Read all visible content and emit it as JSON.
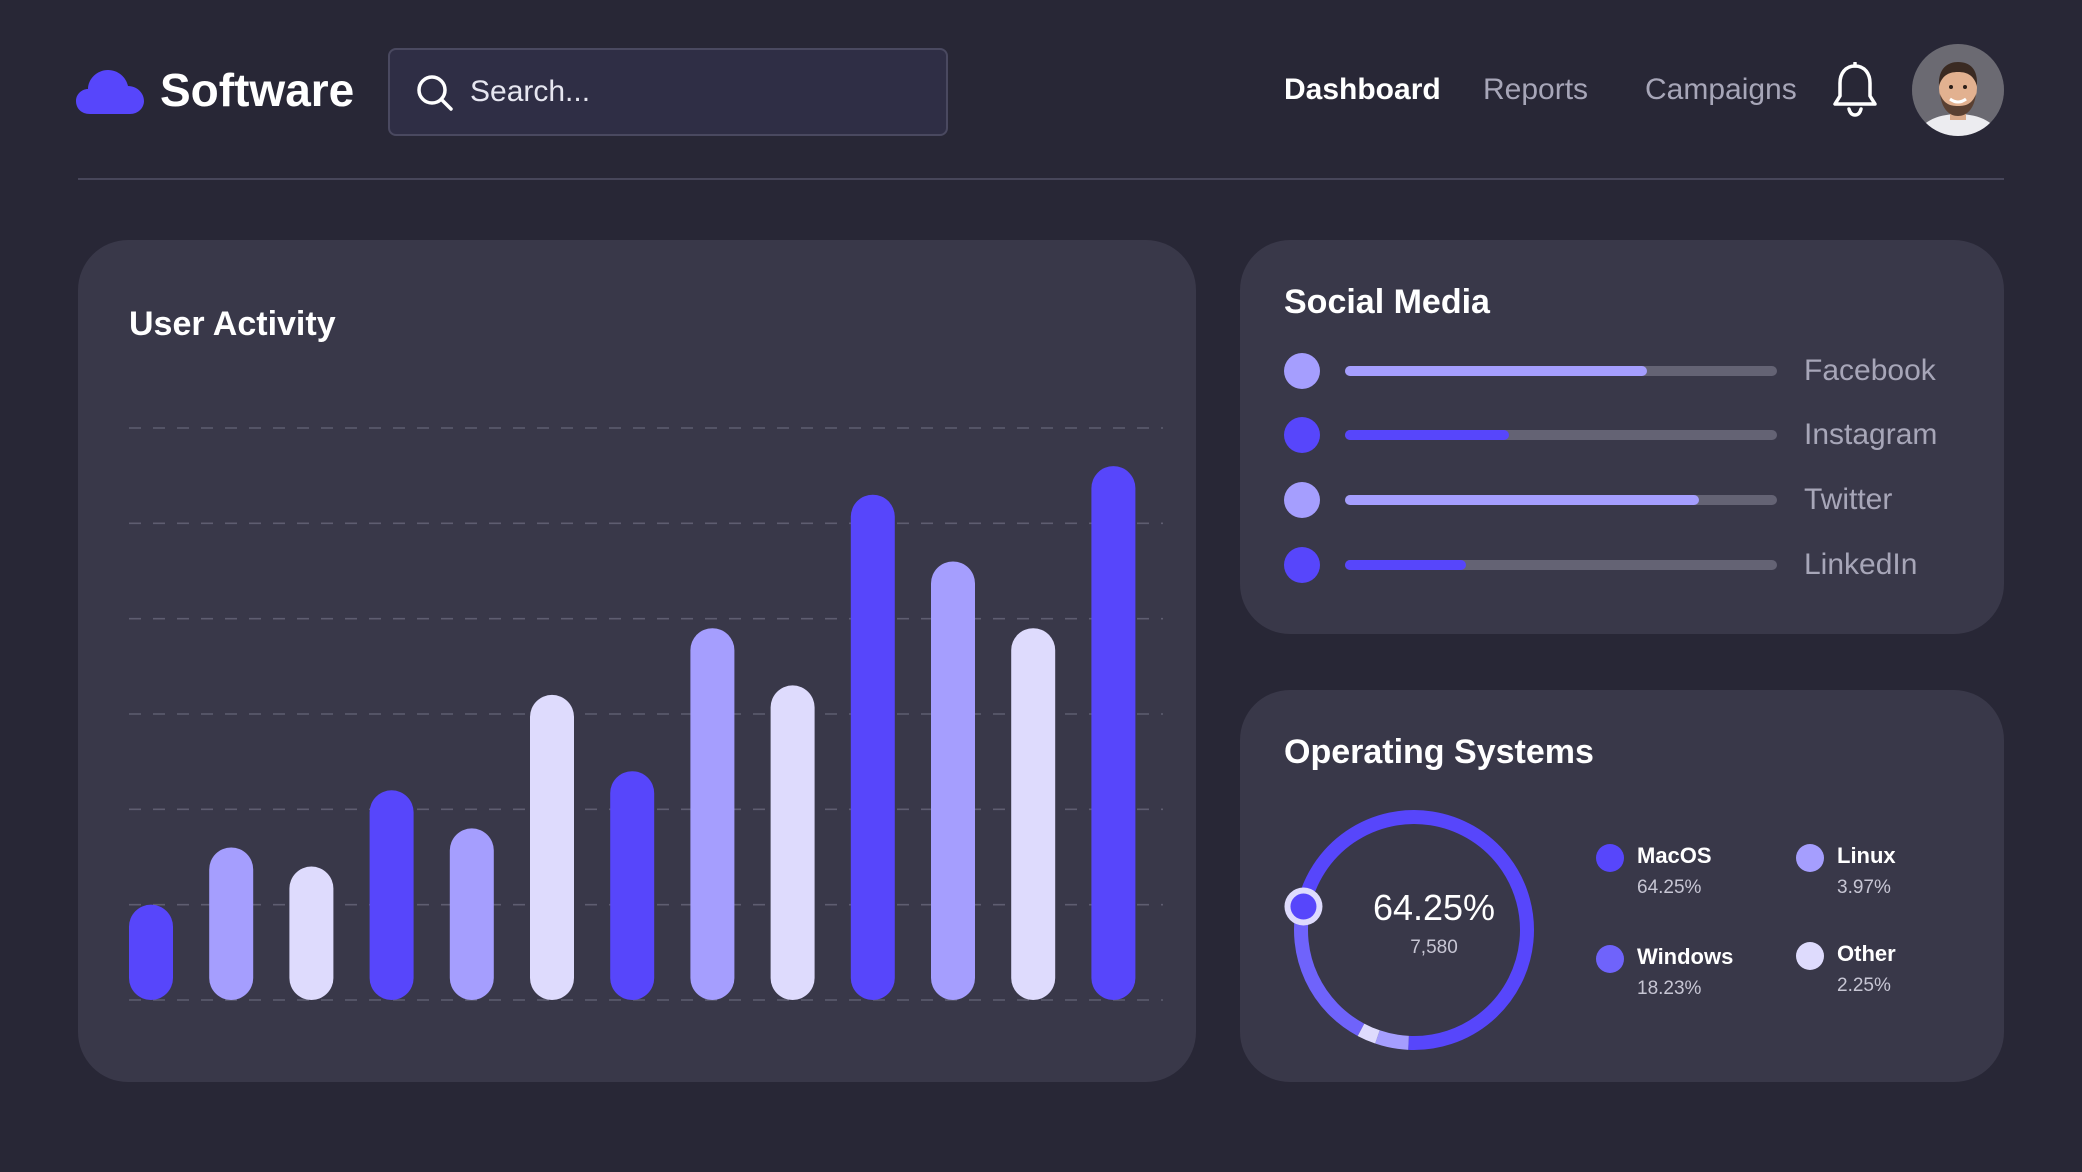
{
  "app": {
    "name": "Software",
    "logo_icon": "cloud-icon",
    "brand_color": "#5746fb"
  },
  "search": {
    "placeholder": "Search...",
    "icon": "search-icon"
  },
  "nav": {
    "items": [
      {
        "label": "Dashboard",
        "active": true
      },
      {
        "label": "Reports",
        "active": false
      },
      {
        "label": "Campaigns",
        "active": false
      }
    ],
    "notification_icon": "bell-icon",
    "avatar_icon": "user-avatar"
  },
  "colors": {
    "background": "#282736",
    "card": "#393849",
    "primary": "#5746fb",
    "secondary": "#a59efe",
    "tertiary": "#dedbfd",
    "track": "#646374"
  },
  "user_activity": {
    "title": "User Activity",
    "chart_data": {
      "type": "bar",
      "title": "User Activity",
      "xlabel": "",
      "ylabel": "",
      "grid": true,
      "ylim": [
        0,
        6
      ],
      "values": [
        1.0,
        1.6,
        1.4,
        2.2,
        1.8,
        3.2,
        2.4,
        3.9,
        3.3,
        5.3,
        4.6,
        3.9,
        5.6
      ],
      "colors": [
        "#5746fb",
        "#a59efe",
        "#dedbfd",
        "#5746fb",
        "#a59efe",
        "#dedbfd",
        "#5746fb",
        "#a59efe",
        "#dedbfd",
        "#5746fb",
        "#a59efe",
        "#dedbfd",
        "#5746fb"
      ]
    }
  },
  "social_media": {
    "title": "Social Media",
    "items": [
      {
        "name": "Facebook",
        "progress": 0.7,
        "color": "#a59efe"
      },
      {
        "name": "Instagram",
        "progress": 0.38,
        "color": "#5746fb"
      },
      {
        "name": "Twitter",
        "progress": 0.82,
        "color": "#a59efe"
      },
      {
        "name": "LinkedIn",
        "progress": 0.28,
        "color": "#5746fb"
      }
    ]
  },
  "operating_systems": {
    "title": "Operating Systems",
    "center_value": "64.25%",
    "center_count": "7,580",
    "chart_data": {
      "type": "pie",
      "series": [
        {
          "name": "MacOS",
          "value": 64.25,
          "color": "#5746fb"
        },
        {
          "name": "Windows",
          "value": 18.23,
          "color": "#6f63fb"
        },
        {
          "name": "Linux",
          "value": 3.97,
          "color": "#a59efe"
        },
        {
          "name": "Other",
          "value": 2.25,
          "color": "#dedbfd"
        }
      ]
    },
    "legend": [
      {
        "name": "MacOS",
        "pct": "64.25%",
        "color": "#5746fb"
      },
      {
        "name": "Linux",
        "pct": "3.97%",
        "color": "#a59efe"
      },
      {
        "name": "Windows",
        "pct": "18.23%",
        "color": "#6f63fb"
      },
      {
        "name": "Other",
        "pct": "2.25%",
        "color": "#dedbfd"
      }
    ]
  }
}
